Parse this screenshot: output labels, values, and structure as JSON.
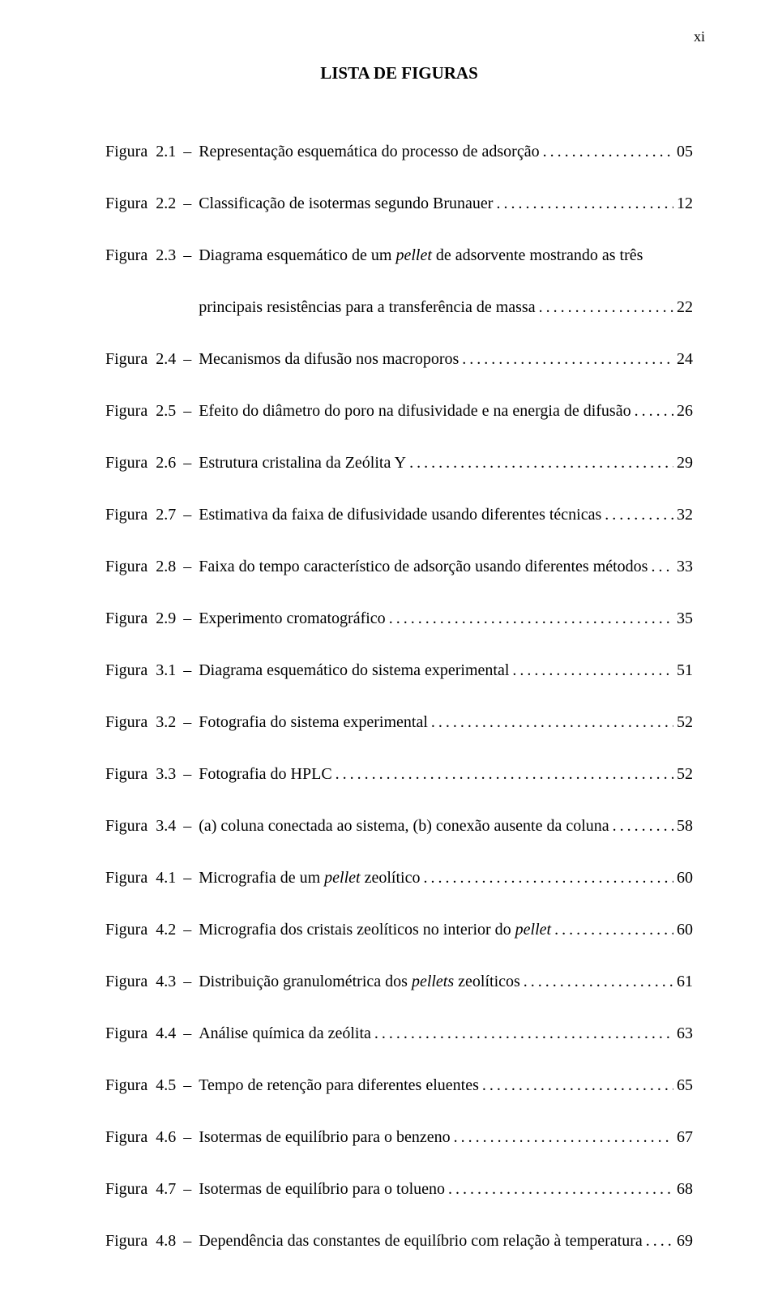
{
  "page_number_roman": "xi",
  "title": "LISTA DE FIGURAS",
  "label_prefix": "Figura",
  "dash": "–",
  "colors": {
    "text": "#000000",
    "background": "#ffffff"
  },
  "typography": {
    "family": "Times New Roman",
    "size_pt": 12,
    "title_weight": "bold"
  },
  "entries": [
    {
      "num": "2.1",
      "lines": [
        "Representação esquemática do processo de adsorção"
      ],
      "page": "05"
    },
    {
      "num": "2.2",
      "lines": [
        "Classificação de isotermas segundo Brunauer"
      ],
      "page": "12"
    },
    {
      "num": "2.3",
      "lines": [
        "Diagrama esquemático de um <i>pellet</i> de adsorvente mostrando as três",
        "principais resistências para a transferência de massa"
      ],
      "page": "22"
    },
    {
      "num": "2.4",
      "lines": [
        "Mecanismos da difusão nos macroporos"
      ],
      "page": "24"
    },
    {
      "num": "2.5",
      "lines": [
        "Efeito do diâmetro do poro na difusividade e na energia de difusão"
      ],
      "page": "26"
    },
    {
      "num": "2.6",
      "lines": [
        "Estrutura cristalina da Zeólita Y"
      ],
      "page": "29"
    },
    {
      "num": "2.7",
      "lines": [
        "Estimativa da faixa de difusividade usando diferentes técnicas"
      ],
      "page": "32"
    },
    {
      "num": "2.8",
      "lines": [
        "Faixa do tempo característico de adsorção usando diferentes métodos"
      ],
      "page": "33"
    },
    {
      "num": "2.9",
      "lines": [
        "Experimento cromatográfico"
      ],
      "page": "35"
    },
    {
      "num": "3.1",
      "lines": [
        "Diagrama esquemático do sistema experimental"
      ],
      "page": "51"
    },
    {
      "num": "3.2",
      "lines": [
        "Fotografia do sistema experimental"
      ],
      "page": "52"
    },
    {
      "num": "3.3",
      "lines": [
        "Fotografia do HPLC"
      ],
      "page": "52"
    },
    {
      "num": "3.4",
      "lines": [
        "(a) coluna conectada ao sistema, (b) conexão ausente da coluna"
      ],
      "page": "58"
    },
    {
      "num": "4.1",
      "lines": [
        "Micrografia de um <i>pellet</i> zeolítico"
      ],
      "page": "60"
    },
    {
      "num": "4.2",
      "lines": [
        "Micrografia dos cristais zeolíticos no interior do <i>pellet</i>"
      ],
      "page": "60"
    },
    {
      "num": "4.3",
      "lines": [
        "Distribuição granulométrica dos <i>pellets</i> zeolíticos"
      ],
      "page": "61"
    },
    {
      "num": "4.4",
      "lines": [
        "Análise química da zeólita"
      ],
      "page": "63"
    },
    {
      "num": "4.5",
      "lines": [
        "Tempo de retenção para diferentes eluentes"
      ],
      "page": "65"
    },
    {
      "num": "4.6",
      "lines": [
        "Isotermas de equilíbrio para o benzeno"
      ],
      "page": "67"
    },
    {
      "num": "4.7",
      "lines": [
        "Isotermas de equilíbrio para o tolueno"
      ],
      "page": "68"
    },
    {
      "num": "4.8",
      "lines": [
        "Dependência das constantes de equilíbrio com relação à temperatura"
      ],
      "page": "69"
    }
  ]
}
